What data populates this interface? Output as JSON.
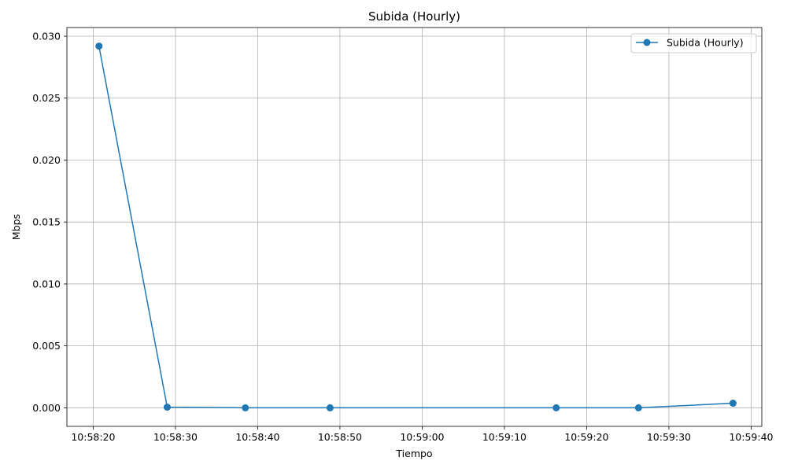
{
  "chart_data": {
    "type": "line",
    "title": "Subida (Hourly)",
    "xlabel": "Tiempo",
    "ylabel": "Mbps",
    "x_ticks": [
      "10:58:20",
      "10:58:30",
      "10:58:40",
      "10:58:50",
      "10:59:00",
      "10:59:10",
      "10:59:20",
      "10:59:30",
      "10:59:40"
    ],
    "y_ticks": [
      "0.000",
      "0.005",
      "0.010",
      "0.015",
      "0.020",
      "0.025",
      "0.030"
    ],
    "xlim": [
      "10:58:16.8",
      "10:59:41.3"
    ],
    "ylim": [
      -0.0015,
      0.0307
    ],
    "grid": true,
    "legend_position": "top-right",
    "series": [
      {
        "name": "Subida (Hourly)",
        "color": "#1f77b4",
        "marker": "circle",
        "x": [
          "10:58:20.7",
          "10:58:29.0",
          "10:58:38.5",
          "10:58:48.8",
          "10:59:16.3",
          "10:59:26.3",
          "10:59:37.8"
        ],
        "values": [
          0.0292,
          5e-05,
          0.0,
          0.0,
          0.0,
          0.0,
          0.00037
        ]
      }
    ]
  }
}
